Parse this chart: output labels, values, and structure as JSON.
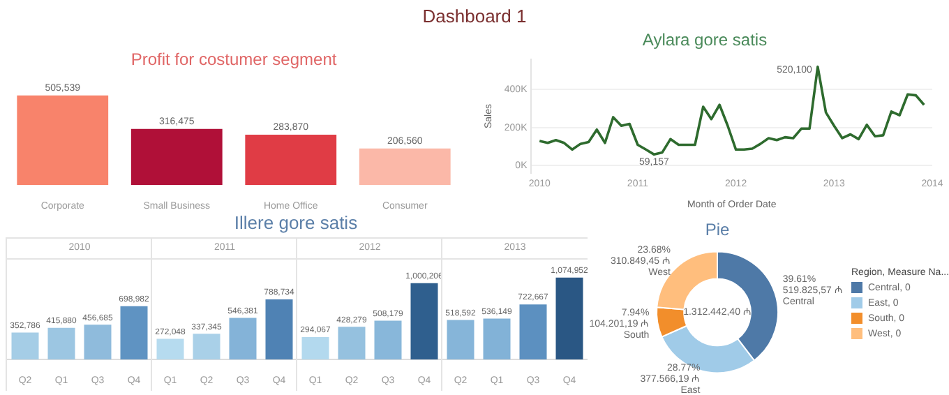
{
  "chart_data": [
    {
      "type": "other",
      "title": "Dashboard 1"
    },
    {
      "type": "bar",
      "title": "Profit for costumer segment",
      "categories": [
        "Corporate",
        "Small Business",
        "Home Office",
        "Consumer"
      ],
      "values": [
        505539,
        316475,
        283870,
        206560
      ],
      "colors": [
        "#f8836b",
        "#b01038",
        "#e03c45",
        "#fbb8a8"
      ],
      "value_labels": [
        "505,539",
        "316,475",
        "283,870",
        "206,560"
      ]
    },
    {
      "type": "line",
      "title": "Aylara gore satis",
      "xlabel": "Month of Order Date",
      "ylabel": "Sales",
      "x": [
        "2010-01",
        "2010-02",
        "2010-03",
        "2010-04",
        "2010-05",
        "2010-06",
        "2010-07",
        "2010-08",
        "2010-09",
        "2010-10",
        "2010-11",
        "2010-12",
        "2011-01",
        "2011-02",
        "2011-03",
        "2011-04",
        "2011-05",
        "2011-06",
        "2011-07",
        "2011-08",
        "2011-09",
        "2011-10",
        "2011-11",
        "2011-12",
        "2012-01",
        "2012-02",
        "2012-03",
        "2012-04",
        "2012-05",
        "2012-06",
        "2012-07",
        "2012-08",
        "2012-09",
        "2012-10",
        "2012-11",
        "2012-12",
        "2013-01",
        "2013-02",
        "2013-03",
        "2013-04",
        "2013-05",
        "2013-06",
        "2013-07",
        "2013-08",
        "2013-09",
        "2013-10",
        "2013-11",
        "2013-12"
      ],
      "series": [
        {
          "color": "#2e6b2e",
          "values": [
            130000,
            120000,
            135000,
            120000,
            85000,
            115000,
            125000,
            190000,
            120000,
            255000,
            210000,
            220000,
            110000,
            85000,
            59157,
            70000,
            140000,
            110000,
            110000,
            110000,
            310000,
            245000,
            320000,
            210000,
            85000,
            85000,
            90000,
            115000,
            145000,
            135000,
            150000,
            145000,
            195000,
            195000,
            520100,
            280000,
            210000,
            145000,
            165000,
            140000,
            215000,
            155000,
            160000,
            285000,
            265000,
            375000,
            370000,
            320000
          ]
        }
      ],
      "xlim": [
        "2009-12",
        "2014-01"
      ],
      "xticks": [
        "2010",
        "2011",
        "2012",
        "2013",
        "2014"
      ],
      "ylim": [
        -40000,
        560000
      ],
      "yticks": [
        {
          "value": 0,
          "label": "0K"
        },
        {
          "value": 200000,
          "label": "200K"
        },
        {
          "value": 400000,
          "label": "400K"
        }
      ],
      "grid": "y",
      "line_style": "solid",
      "annotations": [
        {
          "text": "59,157",
          "x": "2011-03",
          "y": 59157
        },
        {
          "text": "520,100",
          "x": "2012-11",
          "y": 520100
        }
      ]
    },
    {
      "type": "other",
      "title": "Illere gore satis"
    },
    {
      "type": "bar",
      "subtitle": "2010",
      "categories": [
        "Q2",
        "Q1",
        "Q3",
        "Q4"
      ],
      "values": [
        352786,
        415880,
        456685,
        698982
      ],
      "colors": [
        "#a5cde6",
        "#9cc6e2",
        "#8fbbdc",
        "#5f93c2"
      ],
      "value_labels": [
        "352,786",
        "415,880",
        "456,685",
        "698,982"
      ]
    },
    {
      "type": "bar",
      "subtitle": "2011",
      "categories": [
        "Q1",
        "Q2",
        "Q3",
        "Q4"
      ],
      "values": [
        272048,
        337345,
        546381,
        788734
      ],
      "colors": [
        "#b6dbef",
        "#a9d0e8",
        "#84b3d8",
        "#4f82b4"
      ],
      "value_labels": [
        "272,048",
        "337,345",
        "546,381",
        "788,734"
      ]
    },
    {
      "type": "bar",
      "subtitle": "2012",
      "categories": [
        "Q1",
        "Q2",
        "Q3",
        "Q4"
      ],
      "values": [
        294067,
        428279,
        508179,
        1000206
      ],
      "colors": [
        "#b3d9ee",
        "#95c1df",
        "#88b7da",
        "#2f5f8e"
      ],
      "value_labels": [
        "294,067",
        "428,279",
        "508,179",
        "1,000,206"
      ]
    },
    {
      "type": "bar",
      "subtitle": "2013",
      "categories": [
        "Q2",
        "Q1",
        "Q3",
        "Q4"
      ],
      "values": [
        518592,
        536149,
        722667,
        1074952
      ],
      "colors": [
        "#86b5d9",
        "#82b2d7",
        "#5c90c0",
        "#2a5784"
      ],
      "value_labels": [
        "518,592",
        "536,149",
        "722,667",
        "1,074,952"
      ]
    },
    {
      "type": "donut",
      "title": "Pie",
      "legend_title": "Region, Measure Na...",
      "categories": [
        "Central, 0",
        "East, 0",
        "South, 0",
        "West, 0"
      ],
      "values": [
        519825.57,
        377566.19,
        104201.19,
        310849.45
      ],
      "colors": [
        "#4e79a7",
        "#a0cbe8",
        "#f28e2b",
        "#ffbe7d"
      ],
      "legend": "right",
      "value_labels": [
        "39.61%\n519.825,57 ₼\nCentral",
        "28.77%\n377.566,19 ₼\nEast",
        "7.94%\n104.201,19 ₼\nSouth",
        "23.68%\n310.849,45 ₼\nWest"
      ],
      "annotations": [
        "1.312.442,40 ₼"
      ]
    }
  ]
}
